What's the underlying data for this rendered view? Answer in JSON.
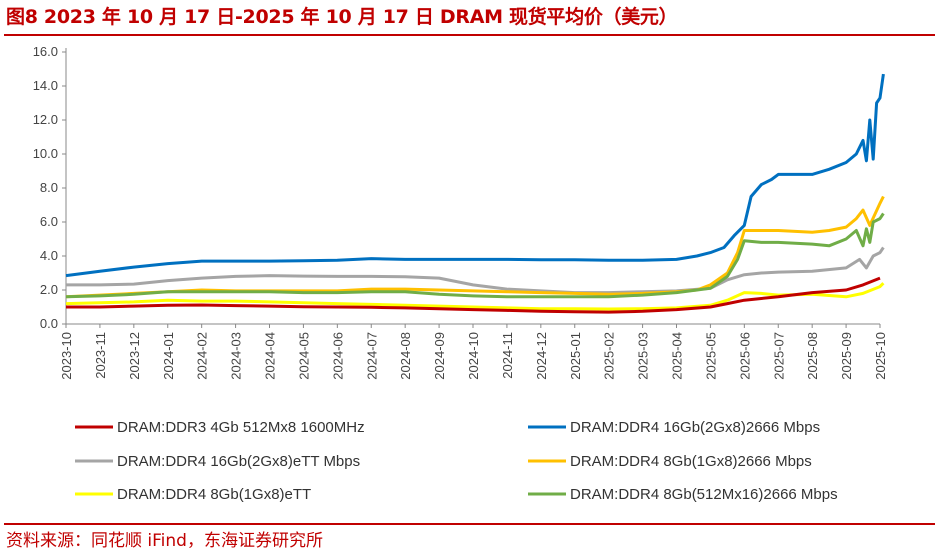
{
  "title": "图8  2023 年 10 月 17 日-2025 年 10 月 17 日 DRAM 现货平均价（美元）",
  "source": "资料来源：同花顺 iFind，东海证券研究所",
  "chart_data": {
    "type": "line",
    "title": "2023 年 10 月 17 日-2025 年 10 月 17 日 DRAM 现货平均价（美元）",
    "xlabel": "",
    "ylabel": "",
    "ylim": [
      0,
      16
    ],
    "yticks": [
      "0.0",
      "2.0",
      "4.0",
      "6.0",
      "8.0",
      "10.0",
      "12.0",
      "14.0",
      "16.0"
    ],
    "categories": [
      "2023-10",
      "2023-11",
      "2023-12",
      "2024-01",
      "2024-02",
      "2024-03",
      "2024-04",
      "2024-05",
      "2024-06",
      "2024-07",
      "2024-08",
      "2024-09",
      "2024-10",
      "2024-11",
      "2024-12",
      "2025-01",
      "2025-02",
      "2025-03",
      "2025-04",
      "2025-05",
      "2025-06",
      "2025-07",
      "2025-08",
      "2025-09",
      "2025-10"
    ],
    "series": [
      {
        "name": "DRAM:DDR3 4Gb 512Mx8 1600MHz",
        "color": "#c00000",
        "x": [
          0,
          1,
          2,
          3,
          4,
          5,
          6,
          7,
          8,
          9,
          10,
          11,
          12,
          13,
          14,
          15,
          16,
          17,
          18,
          19,
          19.5,
          20,
          20.5,
          21,
          22,
          23,
          23.5,
          24
        ],
        "y": [
          1.0,
          1.0,
          1.05,
          1.1,
          1.12,
          1.08,
          1.05,
          1.02,
          1.0,
          0.98,
          0.95,
          0.9,
          0.85,
          0.8,
          0.75,
          0.72,
          0.7,
          0.75,
          0.85,
          1.0,
          1.2,
          1.4,
          1.5,
          1.6,
          1.85,
          2.0,
          2.3,
          2.7
        ]
      },
      {
        "name": "DRAM:DDR4 16Gb(2Gx8)2666 Mbps",
        "color": "#0070c0",
        "x": [
          0,
          1,
          2,
          3,
          4,
          5,
          6,
          7,
          8,
          9,
          10,
          11,
          12,
          13,
          14,
          15,
          16,
          17,
          18,
          18.6,
          19,
          19.4,
          19.7,
          20,
          20.2,
          20.5,
          20.8,
          21,
          22,
          22.5,
          23,
          23.3,
          23.5,
          23.6,
          23.7,
          23.8,
          23.9,
          24,
          24.1
        ],
        "y": [
          2.85,
          3.1,
          3.35,
          3.55,
          3.7,
          3.7,
          3.7,
          3.72,
          3.75,
          3.85,
          3.8,
          3.8,
          3.8,
          3.8,
          3.78,
          3.78,
          3.75,
          3.75,
          3.8,
          4.0,
          4.2,
          4.5,
          5.2,
          5.8,
          7.5,
          8.2,
          8.5,
          8.8,
          8.8,
          9.1,
          9.5,
          10.0,
          10.8,
          9.6,
          12.0,
          9.7,
          13.0,
          13.3,
          14.7
        ]
      },
      {
        "name": "DRAM:DDR4 16Gb(2Gx8)eTT Mbps",
        "color": "#a5a5a5",
        "x": [
          0,
          1,
          2,
          3,
          4,
          5,
          6,
          7,
          8,
          9,
          10,
          11,
          12,
          13,
          14,
          15,
          16,
          17,
          18,
          19,
          19.5,
          20,
          20.5,
          21,
          22,
          23,
          23.4,
          23.6,
          23.8,
          24,
          24.1
        ],
        "y": [
          2.3,
          2.3,
          2.35,
          2.55,
          2.7,
          2.8,
          2.85,
          2.82,
          2.8,
          2.8,
          2.78,
          2.7,
          2.3,
          2.05,
          1.95,
          1.85,
          1.85,
          1.9,
          1.95,
          2.1,
          2.6,
          2.9,
          3.0,
          3.05,
          3.1,
          3.3,
          3.8,
          3.3,
          4.0,
          4.2,
          4.5
        ]
      },
      {
        "name": "DRAM:DDR4 8Gb(1Gx8)2666 Mbps",
        "color": "#ffc000",
        "x": [
          0,
          1,
          2,
          3,
          4,
          5,
          6,
          7,
          8,
          9,
          10,
          11,
          12,
          13,
          14,
          15,
          16,
          17,
          18,
          18.6,
          19,
          19.5,
          19.8,
          20,
          20.5,
          21,
          22,
          22.5,
          23,
          23.3,
          23.5,
          23.7,
          24,
          24.1
        ],
        "y": [
          1.6,
          1.7,
          1.8,
          1.9,
          2.0,
          1.95,
          1.95,
          1.95,
          1.95,
          2.05,
          2.05,
          2.0,
          1.95,
          1.9,
          1.85,
          1.8,
          1.75,
          1.8,
          1.9,
          2.0,
          2.3,
          3.0,
          4.2,
          5.5,
          5.5,
          5.5,
          5.4,
          5.5,
          5.7,
          6.2,
          6.7,
          5.8,
          7.1,
          7.5
        ]
      },
      {
        "name": "DRAM:DDR4 8Gb(1Gx8)eTT",
        "color": "#ffff00",
        "x": [
          0,
          1,
          2,
          3,
          4,
          5,
          6,
          7,
          8,
          9,
          10,
          11,
          12,
          13,
          14,
          15,
          16,
          17,
          18,
          19,
          19.5,
          20,
          20.5,
          21,
          22,
          23,
          23.5,
          24,
          24.1
        ],
        "y": [
          1.2,
          1.25,
          1.3,
          1.4,
          1.35,
          1.35,
          1.3,
          1.25,
          1.2,
          1.15,
          1.1,
          1.05,
          1.0,
          0.95,
          0.9,
          0.9,
          0.88,
          0.9,
          0.95,
          1.1,
          1.4,
          1.85,
          1.8,
          1.7,
          1.75,
          1.6,
          1.8,
          2.2,
          2.4
        ]
      },
      {
        "name": "DRAM:DDR4 8Gb(512Mx16)2666 Mbps",
        "color": "#70ad47",
        "x": [
          0,
          1,
          2,
          3,
          4,
          5,
          6,
          7,
          8,
          9,
          10,
          11,
          12,
          13,
          14,
          15,
          16,
          17,
          18,
          18.6,
          19,
          19.5,
          19.8,
          20,
          20.5,
          21,
          22,
          22.5,
          23,
          23.3,
          23.5,
          23.6,
          23.7,
          23.8,
          24,
          24.1
        ],
        "y": [
          1.6,
          1.65,
          1.75,
          1.9,
          1.9,
          1.9,
          1.9,
          1.85,
          1.85,
          1.9,
          1.9,
          1.75,
          1.65,
          1.6,
          1.6,
          1.6,
          1.6,
          1.7,
          1.85,
          2.0,
          2.1,
          2.8,
          3.8,
          4.9,
          4.8,
          4.8,
          4.7,
          4.6,
          5.0,
          5.5,
          4.6,
          5.6,
          4.8,
          6.0,
          6.2,
          6.5
        ]
      }
    ],
    "legend_position": "bottom",
    "grid": false
  }
}
